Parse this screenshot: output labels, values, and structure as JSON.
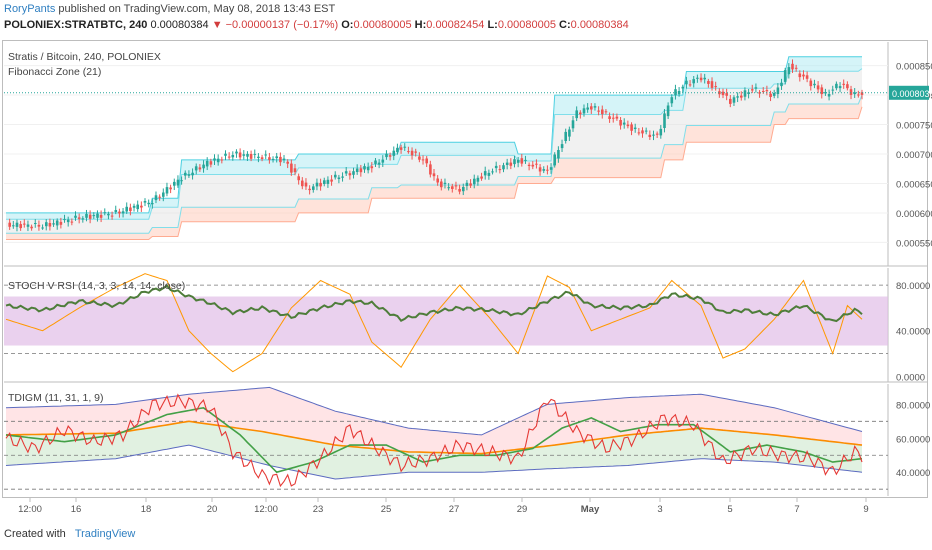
{
  "header": {
    "author": "RoryPants",
    "published": "published on TradingView.com, May 08, 2018 13:43 EST",
    "symbol": "POLONIEX:STRATBTC, 240",
    "last": "0.00080384",
    "change": "▼ −0.00000137 (−0.17%)",
    "o_label": "O:",
    "o": "0.00080005",
    "h_label": "H:",
    "h": "0.00082454",
    "l_label": "L:",
    "l": "0.00080005",
    "c_label": "C:",
    "c": "0.00080384"
  },
  "footer": {
    "created": "Created with",
    "brand": "TradingView"
  },
  "colors": {
    "up": "#26a69a",
    "down": "#ef5350",
    "zone_top": "#b2ebf2",
    "zone_mid": "#e0e0e0",
    "zone_bot": "#ffccbc",
    "stoch_band": "#e1bee7",
    "rsi_line": "#4caf50",
    "stoch_line": "#ff9800",
    "tdi_red": "#e53935",
    "tdi_green": "#43a047",
    "tdi_orange": "#fb8c00",
    "tdi_blue": "#5c6bc0"
  },
  "chart_data": [
    {
      "type": "candlestick",
      "title": "Stratis / Bitcoin, 240, POLONIEX",
      "indicator": "Fibonacci Zone (21)",
      "y_ticks": [
        "0.00085000",
        "0.00080000",
        "0.00075000",
        "0.00070000",
        "0.00065000",
        "0.00060000",
        "0.00055000"
      ],
      "ylim": [
        0.00051,
        0.00089
      ],
      "last_price_label": "0.00080384",
      "last_price": 0.00080384,
      "close_path": [
        [
          0,
          0.00058
        ],
        [
          10,
          0.000578
        ],
        [
          20,
          0.000592
        ],
        [
          30,
          0.0006
        ],
        [
          40,
          0.00062
        ],
        [
          48,
          0.00066
        ],
        [
          55,
          0.000685
        ],
        [
          62,
          0.0007
        ],
        [
          70,
          0.000695
        ],
        [
          76,
          0.00069
        ],
        [
          82,
          0.00064
        ],
        [
          90,
          0.00066
        ],
        [
          100,
          0.00068
        ],
        [
          108,
          0.000712
        ],
        [
          114,
          0.00069
        ],
        [
          118,
          0.00065
        ],
        [
          124,
          0.00064
        ],
        [
          132,
          0.00067
        ],
        [
          140,
          0.00069
        ],
        [
          148,
          0.00067
        ],
        [
          152,
          0.00072
        ],
        [
          156,
          0.00077
        ],
        [
          160,
          0.00078
        ],
        [
          166,
          0.00076
        ],
        [
          172,
          0.00074
        ],
        [
          178,
          0.00073
        ],
        [
          182,
          0.0008
        ],
        [
          186,
          0.00082
        ],
        [
          190,
          0.00083
        ],
        [
          194,
          0.00081
        ],
        [
          198,
          0.00079
        ],
        [
          204,
          0.00081
        ],
        [
          210,
          0.0008
        ],
        [
          214,
          0.00085
        ],
        [
          218,
          0.00083
        ],
        [
          224,
          0.0008
        ],
        [
          228,
          0.00082
        ],
        [
          232,
          0.0008
        ],
        [
          234,
          0.000803
        ]
      ],
      "zone": [
        [
          0,
          0.0006,
          0.000555
        ],
        [
          40,
          0.000625,
          0.00056
        ],
        [
          48,
          0.00069,
          0.000585
        ],
        [
          80,
          0.0007,
          0.0006
        ],
        [
          100,
          0.0007,
          0.000625
        ],
        [
          108,
          0.00072,
          0.000625
        ],
        [
          140,
          0.0007,
          0.00065
        ],
        [
          150,
          0.0008,
          0.00066
        ],
        [
          180,
          0.0008,
          0.00069
        ],
        [
          186,
          0.00084,
          0.00072
        ],
        [
          210,
          0.00084,
          0.00075
        ],
        [
          214,
          0.000865,
          0.00076
        ],
        [
          234,
          0.000865,
          0.00078
        ]
      ]
    },
    {
      "type": "line",
      "title": "STOCH V RSI (14, 3, 3, 14, 14, close)",
      "y_ticks": [
        "80.0000",
        "40.0000",
        "0.0000"
      ],
      "ylim": [
        -5,
        95
      ],
      "band": [
        27,
        70
      ],
      "dashed_levels": [
        80,
        20
      ],
      "series": [
        {
          "values": [
            [
              0,
              62
            ],
            [
              10,
              58
            ],
            [
              20,
              66
            ],
            [
              30,
              62
            ],
            [
              38,
              74
            ],
            [
              44,
              78
            ],
            [
              50,
              70
            ],
            [
              56,
              64
            ],
            [
              62,
              56
            ],
            [
              70,
              60
            ],
            [
              78,
              52
            ],
            [
              86,
              60
            ],
            [
              94,
              66
            ],
            [
              100,
              64
            ],
            [
              108,
              50
            ],
            [
              116,
              56
            ],
            [
              124,
              60
            ],
            [
              132,
              58
            ],
            [
              140,
              54
            ],
            [
              148,
              66
            ],
            [
              154,
              74
            ],
            [
              160,
              62
            ],
            [
              168,
              60
            ],
            [
              176,
              62
            ],
            [
              182,
              72
            ],
            [
              190,
              68
            ],
            [
              196,
              56
            ],
            [
              202,
              58
            ],
            [
              210,
              54
            ],
            [
              218,
              62
            ],
            [
              226,
              48
            ],
            [
              232,
              58
            ],
            [
              234,
              56
            ]
          ]
        },
        {
          "values": [
            [
              0,
              50
            ],
            [
              10,
              40
            ],
            [
              20,
              60
            ],
            [
              30,
              78
            ],
            [
              38,
              90
            ],
            [
              44,
              84
            ],
            [
              50,
              40
            ],
            [
              56,
              20
            ],
            [
              62,
              4
            ],
            [
              70,
              20
            ],
            [
              78,
              60
            ],
            [
              86,
              84
            ],
            [
              94,
              72
            ],
            [
              100,
              30
            ],
            [
              108,
              8
            ],
            [
              116,
              50
            ],
            [
              124,
              80
            ],
            [
              132,
              52
            ],
            [
              140,
              20
            ],
            [
              148,
              88
            ],
            [
              154,
              78
            ],
            [
              160,
              40
            ],
            [
              168,
              50
            ],
            [
              176,
              60
            ],
            [
              182,
              84
            ],
            [
              190,
              62
            ],
            [
              196,
              16
            ],
            [
              202,
              24
            ],
            [
              210,
              50
            ],
            [
              218,
              84
            ],
            [
              226,
              20
            ],
            [
              230,
              62
            ],
            [
              234,
              50
            ]
          ]
        }
      ]
    },
    {
      "type": "line",
      "title": "TDIGM (11, 31, 1, 9)",
      "y_ticks": [
        "80.0000",
        "60.0000",
        "40.0000"
      ],
      "ylim": [
        26,
        92
      ],
      "dashed_levels": [
        70,
        50,
        30
      ],
      "series": [
        {
          "values": [
            [
              0,
              60
            ],
            [
              8,
              54
            ],
            [
              16,
              65
            ],
            [
              24,
              58
            ],
            [
              32,
              62
            ],
            [
              40,
              80
            ],
            [
              48,
              82
            ],
            [
              56,
              78
            ],
            [
              62,
              52
            ],
            [
              70,
              38
            ],
            [
              78,
              34
            ],
            [
              86,
              48
            ],
            [
              94,
              66
            ],
            [
              100,
              56
            ],
            [
              108,
              44
            ],
            [
              116,
              48
            ],
            [
              124,
              56
            ],
            [
              132,
              52
            ],
            [
              140,
              48
            ],
            [
              148,
              84
            ],
            [
              156,
              64
            ],
            [
              164,
              54
            ],
            [
              172,
              60
            ],
            [
              180,
              72
            ],
            [
              188,
              68
            ],
            [
              196,
              46
            ],
            [
              204,
              54
            ],
            [
              212,
              50
            ],
            [
              220,
              48
            ],
            [
              226,
              40
            ],
            [
              232,
              52
            ],
            [
              234,
              50
            ]
          ]
        },
        {
          "values": [
            [
              0,
              62
            ],
            [
              16,
              58
            ],
            [
              30,
              62
            ],
            [
              44,
              74
            ],
            [
              54,
              78
            ],
            [
              64,
              62
            ],
            [
              74,
              40
            ],
            [
              84,
              46
            ],
            [
              94,
              56
            ],
            [
              104,
              56
            ],
            [
              114,
              46
            ],
            [
              124,
              50
            ],
            [
              134,
              50
            ],
            [
              144,
              54
            ],
            [
              152,
              66
            ],
            [
              160,
              72
            ],
            [
              168,
              64
            ],
            [
              178,
              68
            ],
            [
              188,
              68
            ],
            [
              198,
              52
            ],
            [
              208,
              56
            ],
            [
              218,
              52
            ],
            [
              226,
              46
            ],
            [
              234,
              48
            ]
          ]
        },
        {
          "values": [
            [
              0,
              62
            ],
            [
              30,
              63
            ],
            [
              50,
              70
            ],
            [
              70,
              64
            ],
            [
              90,
              56
            ],
            [
              110,
              52
            ],
            [
              130,
              51
            ],
            [
              150,
              56
            ],
            [
              170,
              62
            ],
            [
              190,
              66
            ],
            [
              210,
              62
            ],
            [
              234,
              56
            ]
          ]
        },
        {
          "values": [
            [
              0,
              78
            ],
            [
              30,
              80
            ],
            [
              50,
              86
            ],
            [
              72,
              90
            ],
            [
              90,
              76
            ],
            [
              110,
              66
            ],
            [
              130,
              62
            ],
            [
              148,
              80
            ],
            [
              170,
              84
            ],
            [
              190,
              86
            ],
            [
              210,
              78
            ],
            [
              234,
              64
            ]
          ]
        },
        {
          "values": [
            [
              0,
              44
            ],
            [
              30,
              48
            ],
            [
              50,
              56
            ],
            [
              72,
              44
            ],
            [
              90,
              36
            ],
            [
              110,
              40
            ],
            [
              130,
              40
            ],
            [
              148,
              42
            ],
            [
              170,
              44
            ],
            [
              190,
              48
            ],
            [
              210,
              46
            ],
            [
              234,
              40
            ]
          ]
        }
      ]
    }
  ],
  "x_axis": {
    "ticks": [
      "12:00",
      "16",
      "18",
      "20",
      "12:00",
      "23",
      "25",
      "27",
      "29",
      "May",
      "3",
      "5",
      "7",
      "9"
    ]
  }
}
